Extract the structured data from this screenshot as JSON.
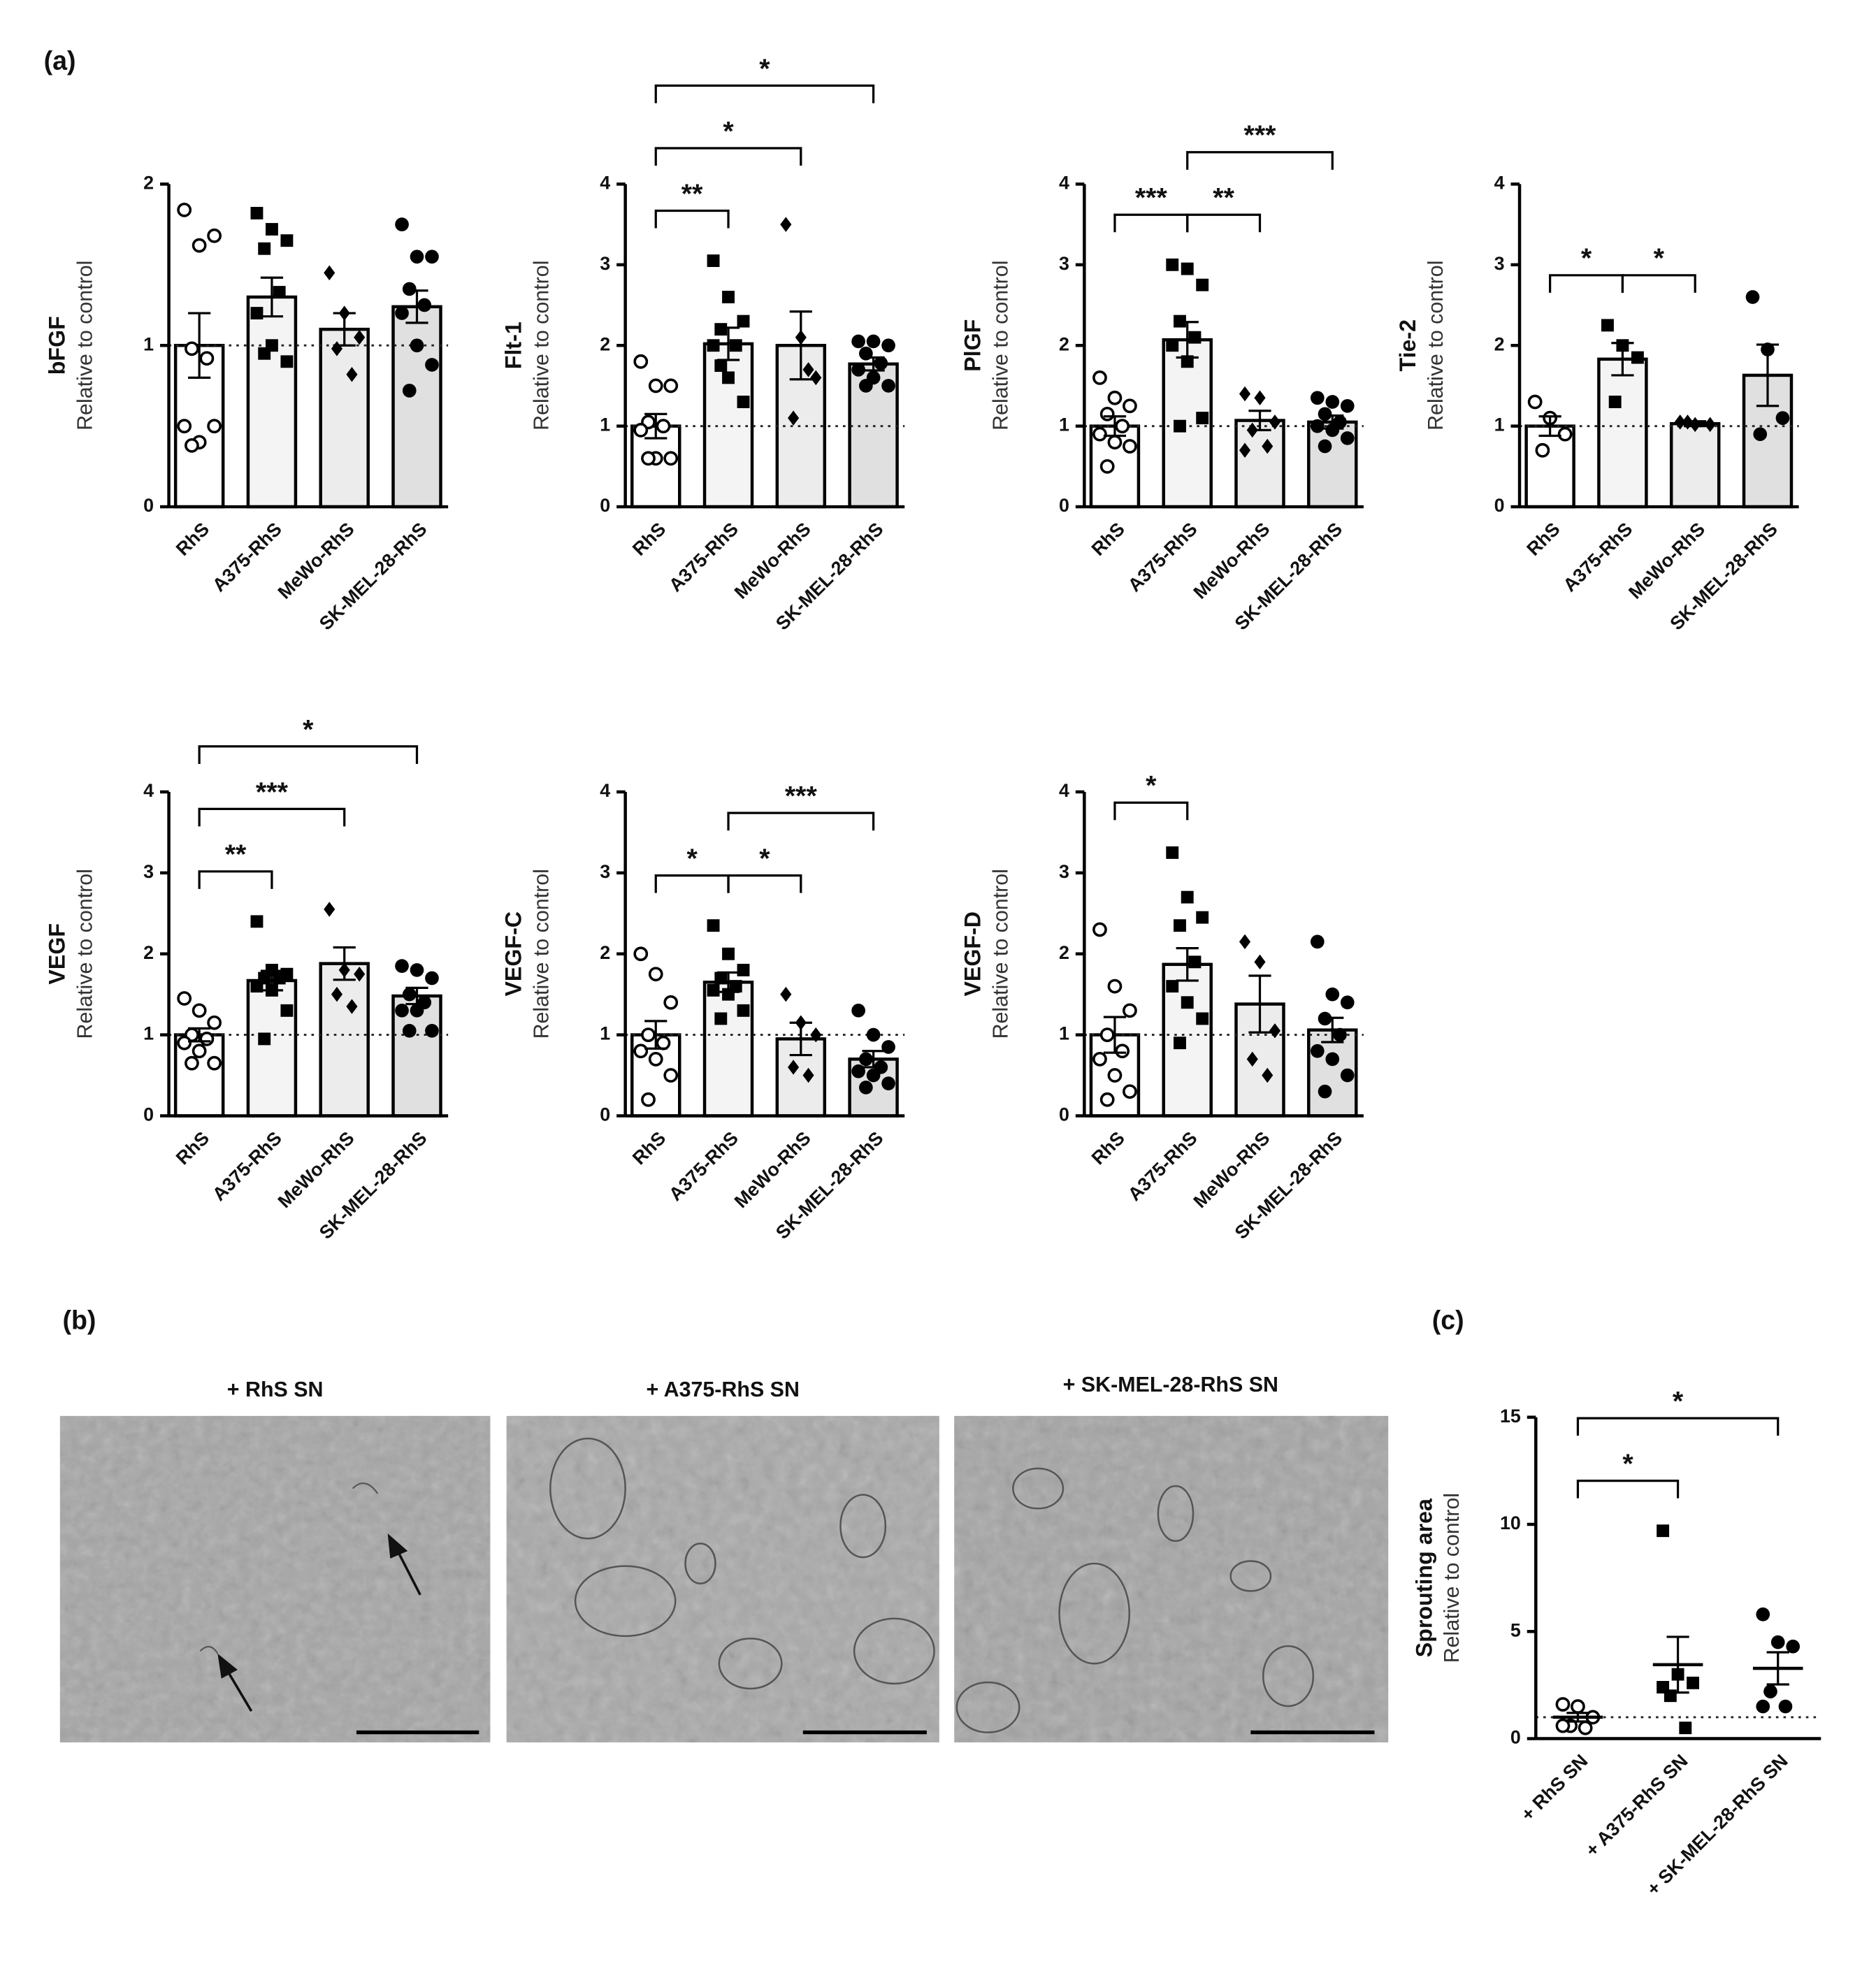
{
  "panel_labels": [
    "(a)",
    "(b)",
    "(c)"
  ],
  "images": [
    {
      "title": "+ RhS SN"
    },
    {
      "title": "+ A375-RhS  SN"
    },
    {
      "title": "+ SK-MEL-28-RhS  SN"
    }
  ],
  "chart_data": [
    {
      "type": "bar",
      "ylabel_top": "bFGF",
      "ylabel": "Relative to control",
      "categories": [
        "RhS",
        "A375-RhS",
        "MeWo-RhS",
        "SK-MEL-28-RhS"
      ],
      "values": [
        1.0,
        1.3,
        1.1,
        1.24
      ],
      "errors": [
        0.2,
        0.12,
        0.1,
        0.1
      ],
      "points": [
        [
          1.84,
          1.62,
          1.68,
          0.98,
          0.92,
          0.5,
          0.4,
          0.5,
          0.38
        ],
        [
          1.82,
          1.72,
          1.65,
          1.6,
          1.33,
          1.2,
          1.0,
          0.9,
          0.95
        ],
        [
          1.45,
          1.2,
          1.05,
          0.98,
          0.82
        ],
        [
          1.75,
          1.55,
          1.55,
          1.35,
          1.25,
          1.2,
          1.0,
          0.88,
          0.72
        ]
      ],
      "markers": [
        "open-circle",
        "square",
        "diamond",
        "circle"
      ],
      "colors": [
        "#ffffff",
        "#f4f4f4",
        "#ececec",
        "#e0e0e0"
      ],
      "ylim": [
        0,
        2
      ],
      "yticks": [
        0,
        1,
        2
      ],
      "refline": 1,
      "brackets": []
    },
    {
      "type": "bar",
      "ylabel_top": "Flt-1",
      "ylabel": "Relative to control",
      "categories": [
        "RhS",
        "A375-RhS",
        "MeWo-RhS",
        "SK-MEL-28-RhS"
      ],
      "values": [
        1.0,
        2.02,
        2.0,
        1.77
      ],
      "errors": [
        0.15,
        0.2,
        0.42,
        0.08
      ],
      "points": [
        [
          1.8,
          1.5,
          1.5,
          1.05,
          1.0,
          0.95,
          0.6,
          0.6,
          0.6
        ],
        [
          3.05,
          2.6,
          2.3,
          2.2,
          2.0,
          2.0,
          1.6,
          1.3,
          1.75
        ],
        [
          3.5,
          2.1,
          1.6,
          1.1,
          1.7
        ],
        [
          2.05,
          2.05,
          2.0,
          1.9,
          1.78,
          1.7,
          1.6,
          1.5,
          1.5
        ]
      ],
      "markers": [
        "open-circle",
        "square",
        "diamond",
        "circle"
      ],
      "colors": [
        "#ffffff",
        "#f4f4f4",
        "#ececec",
        "#e0e0e0"
      ],
      "ylim": [
        0,
        4
      ],
      "yticks": [
        0,
        1,
        2,
        3,
        4
      ],
      "refline": 1,
      "brackets": [
        {
          "from": 0,
          "to": 1,
          "label": "**"
        },
        {
          "from": 0,
          "to": 2,
          "label": "*"
        },
        {
          "from": 0,
          "to": 3,
          "label": "*"
        }
      ]
    },
    {
      "type": "bar",
      "ylabel_top": "PlGF",
      "ylabel": "Relative to control",
      "categories": [
        "RhS",
        "A375-RhS",
        "MeWo-RhS",
        "SK-MEL-28-RhS"
      ],
      "values": [
        1.0,
        2.07,
        1.07,
        1.05
      ],
      "errors": [
        0.12,
        0.22,
        0.12,
        0.08
      ],
      "points": [
        [
          1.6,
          1.35,
          1.25,
          1.15,
          1.0,
          0.9,
          0.8,
          0.75,
          0.5
        ],
        [
          3.0,
          2.95,
          2.75,
          2.3,
          2.1,
          2.0,
          1.8,
          1.1,
          1.0
        ],
        [
          1.4,
          1.35,
          1.05,
          0.95,
          0.75,
          0.7
        ],
        [
          1.35,
          1.3,
          1.25,
          1.15,
          1.05,
          1.0,
          0.95,
          0.85,
          0.75
        ]
      ],
      "markers": [
        "open-circle",
        "square",
        "diamond",
        "circle"
      ],
      "colors": [
        "#ffffff",
        "#f4f4f4",
        "#ececec",
        "#e0e0e0"
      ],
      "ylim": [
        0,
        4
      ],
      "yticks": [
        0,
        1,
        2,
        3,
        4
      ],
      "refline": 1,
      "brackets": [
        {
          "from": 0,
          "to": 1,
          "label": "***"
        },
        {
          "from": 1,
          "to": 2,
          "label": "**"
        },
        {
          "from": 1,
          "to": 3,
          "label": "***"
        }
      ]
    },
    {
      "type": "bar",
      "ylabel_top": "Tie-2",
      "ylabel": "Relative to control",
      "categories": [
        "RhS",
        "A375-RhS",
        "MeWo-RhS",
        "SK-MEL-28-RhS"
      ],
      "values": [
        1.0,
        1.83,
        1.03,
        1.63
      ],
      "errors": [
        0.12,
        0.2,
        0.03,
        0.38
      ],
      "points": [
        [
          1.3,
          1.1,
          0.9,
          0.7
        ],
        [
          2.25,
          2.0,
          1.85,
          1.3
        ],
        [
          1.05,
          1.02,
          1.02,
          1.05
        ],
        [
          2.6,
          1.95,
          1.1,
          0.9
        ]
      ],
      "markers": [
        "open-circle",
        "square",
        "diamond",
        "circle"
      ],
      "colors": [
        "#ffffff",
        "#f4f4f4",
        "#ececec",
        "#e0e0e0"
      ],
      "ylim": [
        0,
        4
      ],
      "yticks": [
        0,
        1,
        2,
        3,
        4
      ],
      "refline": 1,
      "brackets": [
        {
          "from": 0,
          "to": 1,
          "label": "*"
        },
        {
          "from": 1,
          "to": 2,
          "label": "*"
        }
      ]
    },
    {
      "type": "bar",
      "ylabel_top": "VEGF",
      "ylabel": "Relative to control",
      "categories": [
        "RhS",
        "A375-RhS",
        "MeWo-RhS",
        "SK-MEL-28-RhS"
      ],
      "values": [
        1.0,
        1.67,
        1.88,
        1.48
      ],
      "errors": [
        0.08,
        0.12,
        0.2,
        0.1
      ],
      "points": [
        [
          1.45,
          1.3,
          1.15,
          1.0,
          0.95,
          0.9,
          0.8,
          0.65,
          0.65
        ],
        [
          2.4,
          1.8,
          1.75,
          1.7,
          1.7,
          1.6,
          1.55,
          1.3,
          0.95
        ],
        [
          2.55,
          1.8,
          1.75,
          1.5,
          1.35
        ],
        [
          1.85,
          1.8,
          1.7,
          1.5,
          1.4,
          1.3,
          1.3,
          1.05,
          1.05
        ]
      ],
      "markers": [
        "open-circle",
        "square",
        "diamond",
        "circle"
      ],
      "colors": [
        "#ffffff",
        "#f4f4f4",
        "#ececec",
        "#e0e0e0"
      ],
      "ylim": [
        0,
        4
      ],
      "yticks": [
        0,
        1,
        2,
        3,
        4
      ],
      "refline": 1,
      "brackets": [
        {
          "from": 0,
          "to": 1,
          "label": "**"
        },
        {
          "from": 0,
          "to": 2,
          "label": "***"
        },
        {
          "from": 0,
          "to": 3,
          "label": "*"
        }
      ]
    },
    {
      "type": "bar",
      "ylabel_top": "VEGF-C",
      "ylabel": "Relative to control",
      "categories": [
        "RhS",
        "A375-RhS",
        "MeWo-RhS",
        "SK-MEL-28-RhS"
      ],
      "values": [
        1.0,
        1.65,
        0.95,
        0.7
      ],
      "errors": [
        0.17,
        0.12,
        0.2,
        0.1
      ],
      "points": [
        [
          2.0,
          1.75,
          1.4,
          1.0,
          0.9,
          0.8,
          0.7,
          0.5,
          0.2
        ],
        [
          2.35,
          2.0,
          1.8,
          1.7,
          1.6,
          1.55,
          1.5,
          1.3,
          1.2
        ],
        [
          1.5,
          1.15,
          1.0,
          0.6,
          0.5
        ],
        [
          1.3,
          1.0,
          0.85,
          0.7,
          0.6,
          0.55,
          0.5,
          0.4,
          0.35
        ]
      ],
      "markers": [
        "open-circle",
        "square",
        "diamond",
        "circle"
      ],
      "colors": [
        "#ffffff",
        "#f4f4f4",
        "#ececec",
        "#e0e0e0"
      ],
      "ylim": [
        0,
        4
      ],
      "yticks": [
        0,
        1,
        2,
        3,
        4
      ],
      "refline": 1,
      "brackets": [
        {
          "from": 0,
          "to": 1,
          "label": "*"
        },
        {
          "from": 1,
          "to": 2,
          "label": "*"
        },
        {
          "from": 1,
          "to": 3,
          "label": "***"
        }
      ]
    },
    {
      "type": "bar",
      "ylabel_top": "VEGF-D",
      "ylabel": "Relative to control",
      "categories": [
        "RhS",
        "A375-RhS",
        "MeWo-RhS",
        "SK-MEL-28-RhS"
      ],
      "values": [
        1.0,
        1.87,
        1.38,
        1.06
      ],
      "errors": [
        0.22,
        0.2,
        0.35,
        0.15
      ],
      "points": [
        [
          2.3,
          1.6,
          1.3,
          1.0,
          0.8,
          0.7,
          0.5,
          0.3,
          0.2
        ],
        [
          3.25,
          2.7,
          2.45,
          2.35,
          1.9,
          1.6,
          1.4,
          1.2,
          0.9
        ],
        [
          2.15,
          1.9,
          1.05,
          0.7,
          0.5
        ],
        [
          2.15,
          1.5,
          1.4,
          1.2,
          1.0,
          0.8,
          0.7,
          0.5,
          0.3
        ]
      ],
      "markers": [
        "open-circle",
        "square",
        "diamond",
        "circle"
      ],
      "colors": [
        "#ffffff",
        "#f4f4f4",
        "#ececec",
        "#e0e0e0"
      ],
      "ylim": [
        0,
        4
      ],
      "yticks": [
        0,
        1,
        2,
        3,
        4
      ],
      "refline": 1,
      "brackets": [
        {
          "from": 0,
          "to": 1,
          "label": "*"
        }
      ]
    },
    {
      "type": "dotplot",
      "ylabel_top": "Sprouting area",
      "ylabel": "Relative to control",
      "categories": [
        "+ RhS SN",
        "+ A375-RhS SN",
        "+ SK-MEL-28-RhS SN"
      ],
      "values": [
        1.0,
        3.45,
        3.28
      ],
      "errors": [
        0.2,
        1.3,
        0.75
      ],
      "points": [
        [
          1.6,
          1.5,
          1.0,
          0.6,
          0.5,
          0.6
        ],
        [
          9.7,
          3.0,
          2.6,
          2.0,
          0.5,
          2.4
        ],
        [
          5.8,
          4.5,
          4.3,
          2.2,
          1.5,
          1.5
        ]
      ],
      "markers": [
        "open-circle",
        "square",
        "circle"
      ],
      "ylim": [
        0,
        15
      ],
      "yticks": [
        0,
        5,
        10,
        15
      ],
      "refline": 1,
      "brackets": [
        {
          "from": 0,
          "to": 1,
          "label": "*"
        },
        {
          "from": 0,
          "to": 2,
          "label": "*"
        }
      ]
    }
  ]
}
